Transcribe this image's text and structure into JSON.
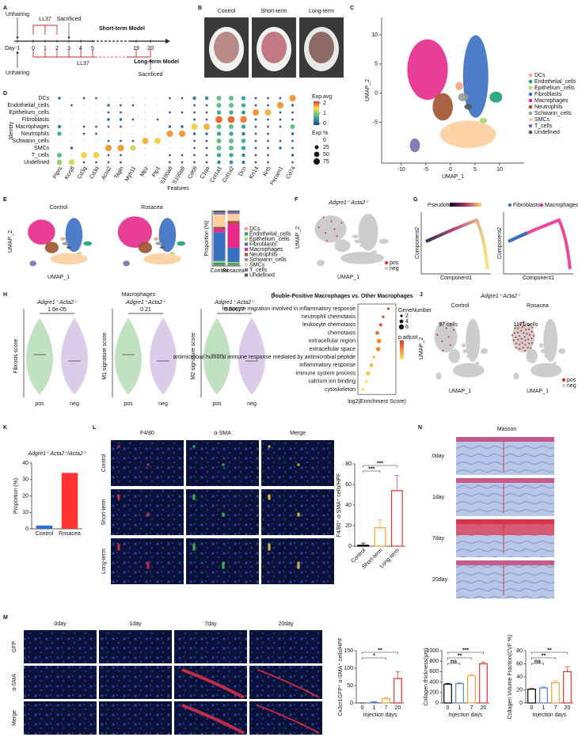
{
  "A": {
    "label": "A",
    "day_label": "Day",
    "days": [
      "-1",
      "0",
      "1",
      "2",
      "3",
      "4",
      "5",
      "19",
      "20"
    ],
    "top_unhairing": "Unhairing",
    "top_ll37": "LL37",
    "top_sacrificed": "Sacrificed",
    "short_model": "Short-term Model",
    "long_model": "Long-term Model",
    "bottom_unhairing": "Unhairing",
    "bottom_ll37": "LL37",
    "bottom_sacrificed": "Sacrificed"
  },
  "B": {
    "label": "B",
    "photos": [
      "Control",
      "Short-term",
      "Long-term"
    ]
  },
  "C": {
    "label": "C",
    "xlabel": "UMAP_1",
    "ylabel": "UMAP_2",
    "xlim": [
      -14,
      15
    ],
    "ylim": [
      -12,
      13
    ],
    "xticks": [
      -10,
      -5,
      0,
      5,
      10
    ],
    "yticks": [
      -5,
      0,
      5,
      10
    ]
  },
  "D": {
    "label": "D"
  },
  "E": {
    "label": "E",
    "titles": [
      "Control",
      "Rosacea"
    ],
    "xlabel": "UMAP_1",
    "ylabel": "UMAP_2"
  },
  "F": {
    "label": "F",
    "title": "Adgre1⁺ Acta2⁺",
    "legend": [
      "pos",
      "neg"
    ],
    "xlabel": "UMAP_1",
    "ylabel": "UMAP_2"
  },
  "G": {
    "label": "G",
    "legend_title": "Pseudotime",
    "legend": [
      "Fibroblasts",
      "Macrophages"
    ],
    "xlabel": "Component1",
    "ylabel": "Component2"
  },
  "H": {
    "label": "H",
    "title": "Macrophages",
    "subtitle": "Adgre1⁺ Acta2⁺",
    "groups": [
      "pos",
      "neg"
    ],
    "plots": [
      {
        "ylabel": "Fibrosis score",
        "p": "1.6e-05"
      },
      {
        "ylabel": "M1 signature score",
        "p": "0.21"
      },
      {
        "ylabel": "M2 signature score",
        "p": "0.00027"
      }
    ]
  },
  "I": {
    "label": "I"
  },
  "J": {
    "label": "J",
    "title": "Adgre1⁺ Acta2⁺",
    "panels": [
      {
        "title": "Control",
        "count": "97 cells"
      },
      {
        "title": "Rosacea",
        "count": "1171 cells"
      }
    ],
    "legend": [
      "pos",
      "neg"
    ],
    "xlabel": "UMAP_1",
    "ylabel": "UMAP_2"
  },
  "K": {
    "label": "K"
  },
  "L": {
    "label": "L",
    "columns": [
      "F4/80",
      "α-SMA",
      "Merge"
    ],
    "rows": [
      "Control",
      "Short-term",
      "Long-term"
    ]
  },
  "M": {
    "label": "M",
    "columns": [
      "0day",
      "1day",
      "7day",
      "20day"
    ],
    "rows": [
      "GFP",
      "α-SMA",
      "Merge"
    ]
  },
  "N": {
    "label": "N",
    "title": "Masson",
    "rows": [
      "0day",
      "1day",
      "7day",
      "20day"
    ]
  },
  "chart_data": [
    {
      "type": "stacked_bar",
      "ylabel": "Proportion (%)",
      "categories": [
        "Control",
        "Rosacea"
      ],
      "ylim": [
        0,
        100
      ],
      "series": [
        {
          "name": "DCs",
          "color": "#f4a582",
          "values": [
            2,
            2
          ]
        },
        {
          "name": "Endothelial_cells",
          "color": "#1b9e77",
          "values": [
            4,
            3
          ]
        },
        {
          "name": "Epithelium_cells",
          "color": "#a6d96a",
          "values": [
            3,
            2
          ]
        },
        {
          "name": "Fibroblasts",
          "color": "#3b6fc2",
          "values": [
            52,
            26
          ]
        },
        {
          "name": "Macrophages",
          "color": "#e7298a",
          "values": [
            6,
            44
          ]
        },
        {
          "name": "Neutrophils",
          "color": "#a0522d",
          "values": [
            3,
            4
          ]
        },
        {
          "name": "Schwann_cells",
          "color": "#9a9a9a",
          "values": [
            1,
            1
          ]
        },
        {
          "name": "SMCs",
          "color": "#fdcf9e",
          "values": [
            22,
            12
          ]
        },
        {
          "name": "T_cells",
          "color": "#7b6fb0",
          "values": [
            4,
            4
          ]
        },
        {
          "name": "Undefined",
          "color": "#555555",
          "values": [
            3,
            2
          ]
        }
      ]
    },
    {
      "type": "bar",
      "title": "Adgre1⁺ Acta2⁺/Acta2⁺",
      "ylabel": "Proportion (%)",
      "categories": [
        "Control",
        "Rosacea"
      ],
      "values": [
        2,
        34
      ],
      "colors": [
        "#2e6fd6",
        "#ff3333"
      ],
      "ylim": [
        0,
        40
      ],
      "yticks": [
        0,
        10,
        20,
        30,
        40
      ]
    },
    {
      "type": "bar",
      "ylabel": "F4/80⁺ α-SMA⁺ cells/HPF",
      "categories": [
        "Control",
        "Short-term",
        "Long-term"
      ],
      "values": [
        1,
        18,
        54
      ],
      "errors": [
        2,
        8,
        15
      ],
      "colors": [
        "#000000",
        "#f0a030",
        "#e8322a"
      ],
      "hollow": true,
      "ylim": [
        0,
        80
      ],
      "yticks": [
        0,
        20,
        40,
        60,
        80
      ],
      "annotations": [
        {
          "text": "***",
          "pair": [
            "Control",
            "Long-term"
          ]
        },
        {
          "text": "***",
          "pair": [
            "Control",
            "Short-term"
          ]
        }
      ]
    },
    {
      "type": "bar",
      "ylabel": "Cx3cr1GFP⁺ α-SMA⁺ cells/HPF",
      "xlabel": "Injection days",
      "categories": [
        "0",
        "1",
        "7",
        "20"
      ],
      "values": [
        0,
        2,
        12,
        70
      ],
      "errors": [
        0,
        2,
        4,
        20
      ],
      "colors": [
        "#000000",
        "#5b7fc7",
        "#f0a030",
        "#e8322a"
      ],
      "hollow": true,
      "ylim": [
        0,
        150
      ],
      "yticks": [
        0,
        50,
        100,
        150
      ],
      "annotations": [
        {
          "text": "**",
          "pair": [
            "0",
            "20"
          ]
        },
        {
          "text": "*",
          "pair": [
            "0",
            "7"
          ]
        }
      ]
    },
    {
      "type": "bar",
      "ylabel": "Collagen thickness(μm)",
      "xlabel": "Injection days",
      "categories": [
        "0",
        "1",
        "7",
        "20"
      ],
      "values": [
        360,
        370,
        520,
        750
      ],
      "errors": [
        15,
        20,
        40,
        30
      ],
      "colors": [
        "#000000",
        "#5b7fc7",
        "#f0a030",
        "#e8322a"
      ],
      "hollow": true,
      "ylim": [
        0,
        1000
      ],
      "yticks": [
        0,
        200,
        400,
        600,
        800,
        1000
      ],
      "annotations": [
        {
          "text": "***",
          "pair": [
            "0",
            "20"
          ]
        },
        {
          "text": "**",
          "pair": [
            "0",
            "7"
          ]
        },
        {
          "text": "ns",
          "pair": [
            "0",
            "1"
          ]
        }
      ]
    },
    {
      "type": "bar",
      "ylabel": "Collagen Volume Fraction(CVF %)",
      "xlabel": "Injection days",
      "categories": [
        "0",
        "1",
        "7",
        "20"
      ],
      "values": [
        21,
        23,
        31,
        48
      ],
      "errors": [
        1,
        2,
        3,
        7
      ],
      "colors": [
        "#000000",
        "#5b7fc7",
        "#f0a030",
        "#e8322a"
      ],
      "hollow": true,
      "ylim": [
        0,
        80
      ],
      "yticks": [
        0,
        20,
        40,
        60,
        80
      ],
      "annotations": [
        {
          "text": "**",
          "pair": [
            "0",
            "20"
          ]
        },
        {
          "text": "**",
          "pair": [
            "0",
            "7"
          ]
        },
        {
          "text": "ns",
          "pair": [
            "0",
            "1"
          ]
        }
      ]
    },
    {
      "type": "dot",
      "xlabel": "Features",
      "ylabel": "Identity",
      "rows": [
        "DCs",
        "Endothelial_cells",
        "Epithelium_cells",
        "Fibroblasts",
        "Macrophages",
        "Neutrophils",
        "Schwann_cells",
        "SMCs",
        "T_cells",
        "Undefined"
      ],
      "features": [
        "Ptprc",
        "Kcnj8",
        "Cd3g",
        "Cd3d",
        "Acta2",
        "Tagln",
        "Myh11",
        "Mpz",
        "Plp1",
        "S100a8",
        "S100a9",
        "Cd68",
        "C1qa",
        "Col1a1",
        "Col1a2",
        "Dcn",
        "Krt14",
        "Krt5",
        "Pecam1",
        "Cd74"
      ],
      "values": [
        [
          10,
          0,
          5,
          5,
          0,
          0,
          0,
          0,
          0,
          5,
          5,
          20,
          20,
          40,
          40,
          30,
          5,
          5,
          5,
          80
        ],
        [
          0,
          5,
          0,
          0,
          10,
          5,
          5,
          0,
          0,
          0,
          0,
          5,
          5,
          40,
          40,
          30,
          5,
          5,
          80,
          10
        ],
        [
          0,
          0,
          0,
          0,
          5,
          5,
          0,
          0,
          0,
          5,
          5,
          5,
          5,
          30,
          30,
          25,
          80,
          75,
          5,
          5
        ],
        [
          0,
          0,
          0,
          0,
          10,
          10,
          5,
          0,
          5,
          0,
          0,
          5,
          5,
          90,
          90,
          85,
          5,
          5,
          5,
          5
        ],
        [
          20,
          0,
          5,
          5,
          5,
          5,
          0,
          0,
          0,
          10,
          10,
          70,
          75,
          40,
          40,
          30,
          5,
          5,
          5,
          40
        ],
        [
          30,
          0,
          5,
          5,
          0,
          0,
          0,
          0,
          0,
          80,
          80,
          10,
          10,
          30,
          30,
          20,
          5,
          5,
          0,
          10
        ],
        [
          0,
          0,
          0,
          0,
          5,
          5,
          5,
          75,
          70,
          0,
          0,
          5,
          5,
          40,
          40,
          35,
          5,
          5,
          5,
          5
        ],
        [
          0,
          10,
          0,
          0,
          80,
          80,
          60,
          0,
          0,
          0,
          0,
          5,
          5,
          40,
          40,
          30,
          5,
          5,
          10,
          5
        ],
        [
          40,
          0,
          70,
          70,
          5,
          5,
          0,
          0,
          0,
          5,
          5,
          5,
          5,
          30,
          30,
          20,
          5,
          5,
          0,
          10
        ],
        [
          50,
          60,
          5,
          5,
          5,
          5,
          0,
          0,
          0,
          5,
          5,
          5,
          5,
          20,
          20,
          15,
          5,
          5,
          0,
          5
        ]
      ],
      "color_title": "Exp.avg",
      "colorbar_ticks": [
        0,
        1,
        2
      ],
      "size_title": "Exp %",
      "size_ticks": [
        0,
        25,
        50,
        75
      ]
    },
    {
      "type": "scatter",
      "title": "Double-Positive Macrophages vs. Other Macrophages",
      "xlabel": "log2(Enrichment Score)",
      "categories": [
        "leukocyte migration involved in inflammatory response",
        "neutrophil chemotaxis",
        "leukocyte chemotaxis",
        "chemotaxis",
        "extracellular region",
        "extracellular space",
        "antimicrobial humoral immune response mediated by antimicrobial peptide",
        "inflammatory response",
        "immune system process",
        "calcium ion binding",
        "cytoskeleton"
      ],
      "values": [
        5.6,
        5.0,
        4.7,
        4.3,
        4.5,
        4.4,
        3.9,
        3.6,
        3.2,
        3.0,
        2.6
      ],
      "sizes": [
        2,
        2,
        3,
        4,
        5,
        5,
        2,
        4,
        5,
        3,
        3
      ],
      "colors": [
        "#e8322a",
        "#e8322a",
        "#e84a2a",
        "#ef6a2a",
        "#f08a2a",
        "#f08a2a",
        "#f3b030",
        "#f3c040",
        "#f3d050",
        "#f3e060",
        "#f3e870"
      ],
      "xlim": [
        2,
        6.5
      ],
      "size_title": "GeneNumber",
      "size_ticks": [
        2,
        4,
        6
      ],
      "color_title": "p.adjust"
    }
  ]
}
